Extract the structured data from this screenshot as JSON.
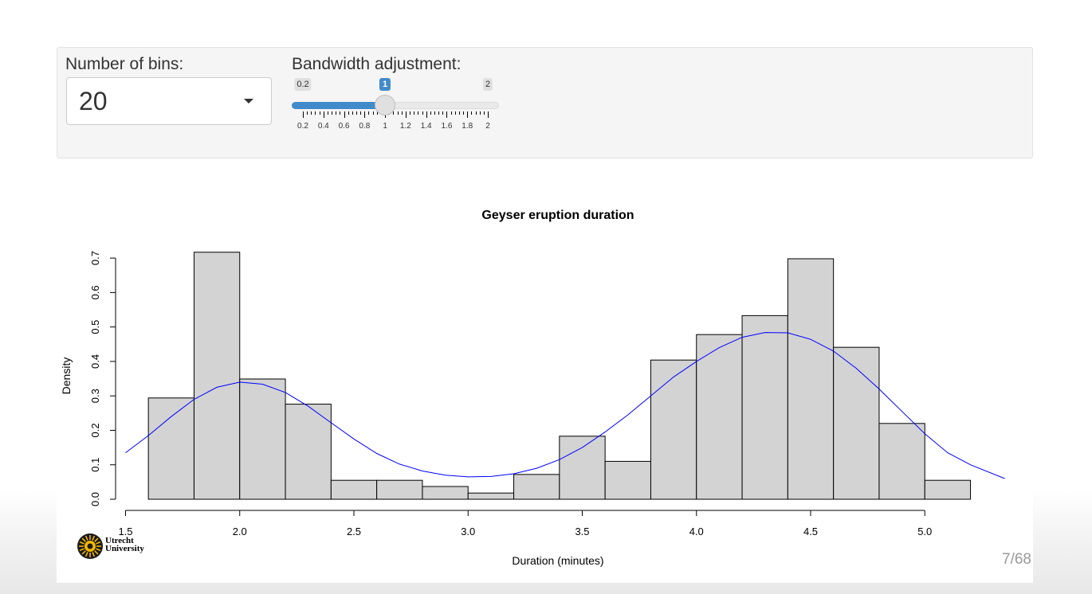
{
  "controls": {
    "bins_label": "Number of bins:",
    "bins_value": "20",
    "bandwidth_label": "Bandwidth adjustment:",
    "bandwidth_min": "0.2",
    "bandwidth_max": "2",
    "bandwidth_value": "1",
    "bandwidth_fraction": 0.4444,
    "bandwidth_ticks": [
      "0.2",
      "0.4",
      "0.6",
      "0.8",
      "1",
      "1.2",
      "1.4",
      "1.6",
      "1.8",
      "2"
    ],
    "accent_color": "#428bca"
  },
  "chart_data": {
    "type": "bar",
    "title": "Geyser eruption duration",
    "xlabel": "Duration (minutes)",
    "ylabel": "Density",
    "xlim": [
      1.5,
      5.3
    ],
    "ylim": [
      0,
      0.7
    ],
    "x_ticks": [
      "1.5",
      "2.0",
      "2.5",
      "3.0",
      "3.5",
      "4.0",
      "4.5",
      "5.0"
    ],
    "y_ticks": [
      "0.0",
      "0.1",
      "0.2",
      "0.3",
      "0.4",
      "0.5",
      "0.6",
      "0.7"
    ],
    "bins": [
      {
        "start": 1.6,
        "end": 1.8,
        "density": 0.294
      },
      {
        "start": 1.8,
        "end": 2.0,
        "density": 0.717
      },
      {
        "start": 2.0,
        "end": 2.2,
        "density": 0.349
      },
      {
        "start": 2.2,
        "end": 2.4,
        "density": 0.276
      },
      {
        "start": 2.4,
        "end": 2.6,
        "density": 0.055
      },
      {
        "start": 2.6,
        "end": 2.8,
        "density": 0.055
      },
      {
        "start": 2.8,
        "end": 3.0,
        "density": 0.037
      },
      {
        "start": 3.0,
        "end": 3.2,
        "density": 0.018
      },
      {
        "start": 3.2,
        "end": 3.4,
        "density": 0.072
      },
      {
        "start": 3.4,
        "end": 3.6,
        "density": 0.183
      },
      {
        "start": 3.6,
        "end": 3.8,
        "density": 0.11
      },
      {
        "start": 3.8,
        "end": 4.0,
        "density": 0.404
      },
      {
        "start": 4.0,
        "end": 4.2,
        "density": 0.478
      },
      {
        "start": 4.2,
        "end": 4.4,
        "density": 0.533
      },
      {
        "start": 4.4,
        "end": 4.6,
        "density": 0.698
      },
      {
        "start": 4.6,
        "end": 4.8,
        "density": 0.441
      },
      {
        "start": 4.8,
        "end": 5.0,
        "density": 0.22
      },
      {
        "start": 5.0,
        "end": 5.2,
        "density": 0.055
      }
    ],
    "density_curve": {
      "color": "#0000ff",
      "x": [
        1.5,
        1.6,
        1.7,
        1.8,
        1.9,
        2.0,
        2.1,
        2.2,
        2.3,
        2.4,
        2.5,
        2.6,
        2.7,
        2.8,
        2.9,
        3.0,
        3.1,
        3.2,
        3.3,
        3.4,
        3.5,
        3.6,
        3.7,
        3.8,
        3.9,
        4.0,
        4.1,
        4.2,
        4.3,
        4.4,
        4.5,
        4.6,
        4.7,
        4.8,
        4.9,
        5.0,
        5.1,
        5.2,
        5.35
      ],
      "y": [
        0.135,
        0.185,
        0.24,
        0.29,
        0.325,
        0.34,
        0.334,
        0.31,
        0.27,
        0.222,
        0.175,
        0.133,
        0.102,
        0.082,
        0.07,
        0.065,
        0.066,
        0.074,
        0.09,
        0.115,
        0.15,
        0.195,
        0.245,
        0.3,
        0.355,
        0.4,
        0.44,
        0.47,
        0.484,
        0.483,
        0.464,
        0.43,
        0.38,
        0.32,
        0.255,
        0.19,
        0.135,
        0.1,
        0.06
      ]
    },
    "bar_fill": "#d3d3d3",
    "grid": false,
    "legend": "none"
  },
  "branding": {
    "logo_line1": "Utrecht",
    "logo_line2": "University"
  },
  "page_number": "7/68"
}
